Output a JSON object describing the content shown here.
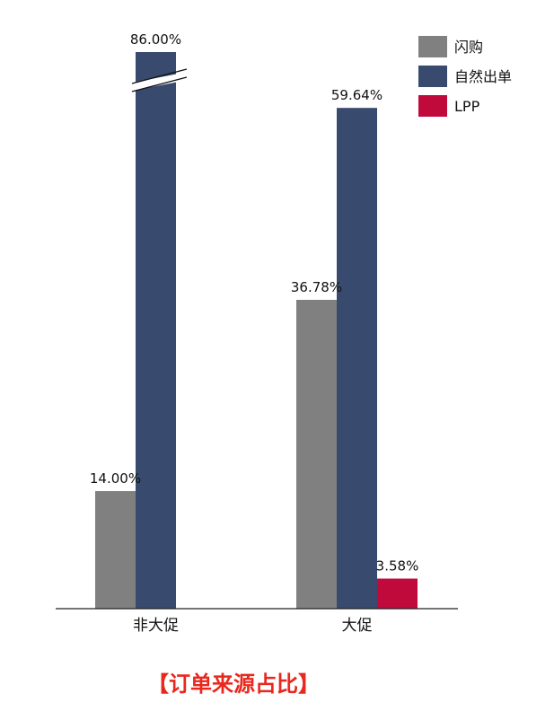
{
  "chart_data": {
    "type": "bar",
    "categories": [
      "非大促",
      "大促"
    ],
    "series": [
      {
        "name": "闪购",
        "values": [
          14.0,
          36.78
        ],
        "color": "#808080"
      },
      {
        "name": "自然出单",
        "values": [
          86.0,
          59.64
        ],
        "color": "#384b6e"
      },
      {
        "name": "LPP",
        "values": [
          null,
          3.58
        ],
        "color": "#c00a3c"
      }
    ],
    "data_labels": [
      [
        "14.00%",
        "36.78%"
      ],
      [
        "86.00%",
        "59.64%"
      ],
      [
        null,
        "3.58%"
      ]
    ],
    "axis_break": {
      "series": "自然出单",
      "category": "非大促"
    },
    "legend_position": "top-right",
    "grid": false,
    "y_axis_visible": false
  },
  "caption": "【订单来源占比】",
  "caption_color": "#e8281e"
}
